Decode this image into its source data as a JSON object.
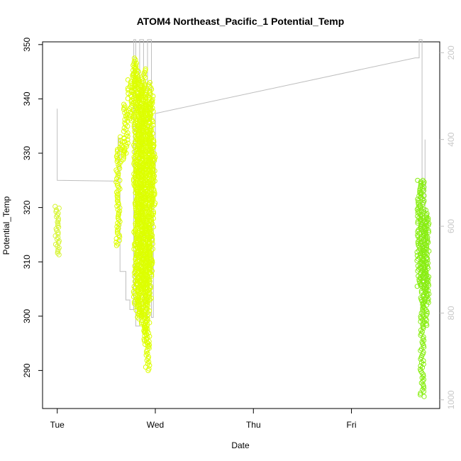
{
  "chart_data": {
    "type": "scatter",
    "title": "ATOM4 Northeast_Pacific_1 Potential_Temp",
    "xlabel": "Date",
    "ylabel": "Potential_Temp",
    "x_ticks": [
      "Tue",
      "Wed",
      "Thu",
      "Fri"
    ],
    "x_unit": "days since Tue 00:00",
    "xlim": [
      -0.15,
      3.9
    ],
    "y_ticks": [
      290,
      300,
      310,
      320,
      330,
      340,
      350
    ],
    "ylim": [
      283,
      350.5
    ],
    "y2_ticks": [
      200,
      400,
      600,
      800,
      1000
    ],
    "y2lim": [
      1020,
      175
    ],
    "colors": {
      "tue_points": "#d7f533",
      "wed_points": "#ddff00",
      "fri_points": "#88ee11",
      "altitude_line": "#bebebe"
    },
    "series": [
      {
        "ranges": [
          {
            "x": 0.0,
            "ymin": 311.3,
            "ymax": 320.2
          }
        ]
      },
      {
        "ranges": [
          {
            "x": 0.62,
            "ymin": 313.0,
            "ymax": 331.0
          },
          {
            "x": 0.66,
            "ymin": 328.5,
            "ymax": 333.0
          },
          {
            "x": 0.7,
            "ymin": 330.0,
            "ymax": 339.0
          },
          {
            "x": 0.74,
            "ymin": 336.0,
            "ymax": 343.5
          },
          {
            "x": 0.78,
            "ymin": 340.0,
            "ymax": 346.5
          },
          {
            "x": 0.8,
            "ymin": 302.0,
            "ymax": 347.5
          },
          {
            "x": 0.82,
            "ymin": 299.5,
            "ymax": 345.0
          },
          {
            "x": 0.84,
            "ymin": 300.0,
            "ymax": 344.0
          },
          {
            "x": 0.86,
            "ymin": 305.0,
            "ymax": 342.5
          },
          {
            "x": 0.88,
            "ymin": 297.0,
            "ymax": 345.5
          },
          {
            "x": 0.9,
            "ymin": 294.5,
            "ymax": 341.5
          },
          {
            "x": 0.92,
            "ymin": 290.0,
            "ymax": 339.0
          },
          {
            "x": 0.94,
            "ymin": 303.0,
            "ymax": 343.0
          },
          {
            "x": 0.96,
            "ymin": 308.0,
            "ymax": 340.5
          },
          {
            "x": 0.98,
            "ymin": 320.5,
            "ymax": 333.0
          }
        ]
      },
      {
        "ranges": [
          {
            "x": 3.69,
            "ymin": 305.5,
            "ymax": 325.0
          },
          {
            "x": 3.72,
            "ymin": 285.2,
            "ymax": 325.0
          },
          {
            "x": 3.75,
            "ymin": 298.0,
            "ymax": 319.5
          },
          {
            "x": 3.77,
            "ymin": 302.5,
            "ymax": 318.0
          }
        ]
      },
      {
        "type": "line",
        "axis": "right",
        "points": [
          [
            0.0,
            329
          ],
          [
            0.0,
            494
          ],
          [
            0.0,
            494
          ],
          [
            0.62,
            496
          ],
          [
            0.62,
            397
          ],
          [
            0.64,
            397
          ],
          [
            0.64,
            704
          ],
          [
            0.7,
            704
          ],
          [
            0.7,
            770
          ],
          [
            0.74,
            770
          ],
          [
            0.74,
            792
          ],
          [
            0.78,
            792
          ],
          [
            0.78,
            170
          ],
          [
            0.8,
            170
          ],
          [
            0.8,
            830
          ],
          [
            0.84,
            830
          ],
          [
            0.84,
            170
          ],
          [
            0.88,
            170
          ],
          [
            0.88,
            810
          ],
          [
            0.92,
            810
          ],
          [
            0.92,
            170
          ],
          [
            0.96,
            170
          ],
          [
            0.96,
            810
          ],
          [
            0.98,
            810
          ],
          [
            0.98,
            500
          ],
          [
            1.0,
            500
          ],
          [
            1.0,
            340
          ],
          [
            3.65,
            212
          ],
          [
            3.69,
            212
          ],
          [
            3.69,
            170
          ],
          [
            3.72,
            170
          ],
          [
            3.72,
            730
          ],
          [
            3.75,
            730
          ],
          [
            3.75,
            400
          ]
        ]
      }
    ]
  }
}
